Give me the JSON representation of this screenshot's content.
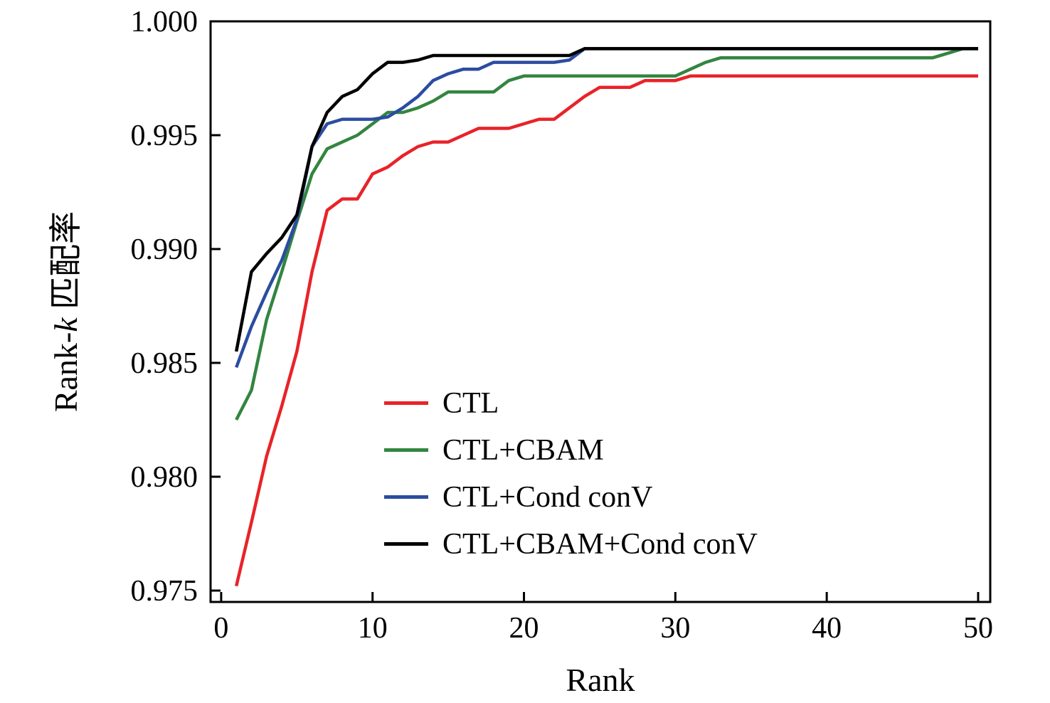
{
  "figure": {
    "xlabel": "Rank",
    "ylabel": "Rank-k 匹配率",
    "ylabel_parts": {
      "prefix": "Rank-",
      "italic": "k",
      "suffix": " 匹配率"
    }
  },
  "colors": {
    "ctl": "#e82328",
    "ctl_cbam": "#338540",
    "ctl_cond_conv": "#2b4da0",
    "ctl_cbam_cond_conv": "#000000",
    "axis": "#000000"
  },
  "chart_data": {
    "type": "line",
    "title": "",
    "xlabel": "Rank",
    "ylabel": "Rank-k 匹配率",
    "xlim": [
      0,
      50
    ],
    "ylim": [
      0.975,
      1.0
    ],
    "x_ticks": [
      0,
      10,
      20,
      30,
      40,
      50
    ],
    "y_ticks": [
      0.975,
      0.98,
      0.985,
      0.99,
      0.995,
      1.0
    ],
    "grid": false,
    "legend_position": "inside lower-center",
    "x": [
      1,
      2,
      3,
      4,
      5,
      6,
      7,
      8,
      9,
      10,
      11,
      12,
      13,
      14,
      15,
      16,
      17,
      18,
      19,
      20,
      21,
      22,
      23,
      24,
      25,
      26,
      27,
      28,
      29,
      30,
      31,
      32,
      33,
      34,
      35,
      36,
      37,
      38,
      39,
      40,
      41,
      42,
      43,
      44,
      45,
      46,
      47,
      48,
      49,
      50
    ],
    "series": [
      {
        "name": "CTL",
        "color": "#e82328",
        "values": [
          0.9752,
          0.978,
          0.9809,
          0.9831,
          0.9855,
          0.989,
          0.9917,
          0.9922,
          0.9922,
          0.9933,
          0.9936,
          0.9941,
          0.9945,
          0.9947,
          0.9947,
          0.995,
          0.9953,
          0.9953,
          0.9953,
          0.9955,
          0.9957,
          0.9957,
          0.9962,
          0.9967,
          0.9971,
          0.9971,
          0.9971,
          0.9974,
          0.9974,
          0.9974,
          0.9976,
          0.9976,
          0.9976,
          0.9976,
          0.9976,
          0.9976,
          0.9976,
          0.9976,
          0.9976,
          0.9976,
          0.9976,
          0.9976,
          0.9976,
          0.9976,
          0.9976,
          0.9976,
          0.9976,
          0.9976,
          0.9976,
          0.9976
        ]
      },
      {
        "name": "CTL+CBAM",
        "color": "#338540",
        "values": [
          0.9825,
          0.9838,
          0.9869,
          0.989,
          0.9912,
          0.9933,
          0.9944,
          0.9947,
          0.995,
          0.9955,
          0.996,
          0.996,
          0.9962,
          0.9965,
          0.9969,
          0.9969,
          0.9969,
          0.9969,
          0.9974,
          0.9976,
          0.9976,
          0.9976,
          0.9976,
          0.9976,
          0.9976,
          0.9976,
          0.9976,
          0.9976,
          0.9976,
          0.9976,
          0.9979,
          0.9982,
          0.9984,
          0.9984,
          0.9984,
          0.9984,
          0.9984,
          0.9984,
          0.9984,
          0.9984,
          0.9984,
          0.9984,
          0.9984,
          0.9984,
          0.9984,
          0.9984,
          0.9984,
          0.9986,
          0.9988,
          0.9988
        ]
      },
      {
        "name": "CTL+Cond conV",
        "color": "#2b4da0",
        "values": [
          0.9848,
          0.9866,
          0.9881,
          0.9895,
          0.9913,
          0.9945,
          0.9955,
          0.9957,
          0.9957,
          0.9957,
          0.9958,
          0.9962,
          0.9967,
          0.9974,
          0.9977,
          0.9979,
          0.9979,
          0.9982,
          0.9982,
          0.9982,
          0.9982,
          0.9982,
          0.9983,
          0.9988,
          0.9988,
          0.9988,
          0.9988,
          0.9988,
          0.9988,
          0.9988,
          0.9988,
          0.9988,
          0.9988,
          0.9988,
          0.9988,
          0.9988,
          0.9988,
          0.9988,
          0.9988,
          0.9988,
          0.9988,
          0.9988,
          0.9988,
          0.9988,
          0.9988,
          0.9988,
          0.9988,
          0.9988,
          0.9988,
          0.9988
        ]
      },
      {
        "name": "CTL+CBAM+Cond conV",
        "color": "#000000",
        "values": [
          0.9855,
          0.989,
          0.9898,
          0.9905,
          0.9915,
          0.9945,
          0.996,
          0.9967,
          0.997,
          0.9977,
          0.9982,
          0.9982,
          0.9983,
          0.9985,
          0.9985,
          0.9985,
          0.9985,
          0.9985,
          0.9985,
          0.9985,
          0.9985,
          0.9985,
          0.9985,
          0.9988,
          0.9988,
          0.9988,
          0.9988,
          0.9988,
          0.9988,
          0.9988,
          0.9988,
          0.9988,
          0.9988,
          0.9988,
          0.9988,
          0.9988,
          0.9988,
          0.9988,
          0.9988,
          0.9988,
          0.9988,
          0.9988,
          0.9988,
          0.9988,
          0.9988,
          0.9988,
          0.9988,
          0.9988,
          0.9988,
          0.9988
        ]
      }
    ]
  }
}
